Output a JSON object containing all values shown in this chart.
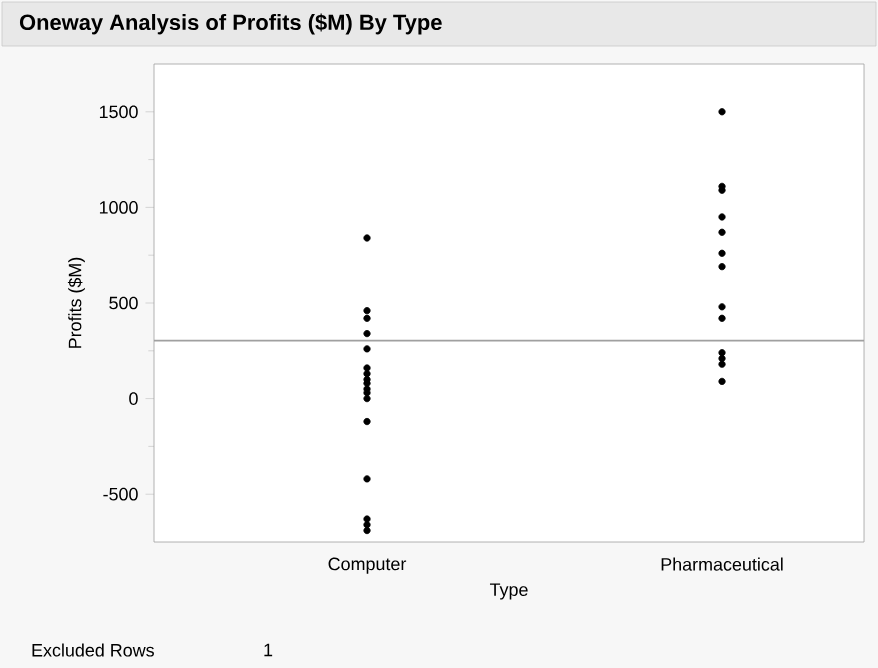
{
  "chart_data": {
    "type": "scatter",
    "title": "Oneway Analysis of Profits ($M) By Type",
    "xlabel": "Type",
    "ylabel": "Profits ($M)",
    "categories": [
      "Computer",
      "Pharmaceutical"
    ],
    "series": [
      {
        "color": "#000000",
        "x": [
          "Computer",
          "Computer",
          "Computer",
          "Computer",
          "Computer",
          "Computer",
          "Computer",
          "Computer",
          "Computer",
          "Computer",
          "Computer",
          "Computer",
          "Computer",
          "Computer",
          "Computer",
          "Computer",
          "Computer"
        ],
        "values": [
          840,
          460,
          420,
          340,
          260,
          160,
          130,
          100,
          80,
          50,
          30,
          0,
          -120,
          -420,
          -630,
          -660,
          -690
        ]
      },
      {
        "color": "#000000",
        "x": [
          "Pharmaceutical",
          "Pharmaceutical",
          "Pharmaceutical",
          "Pharmaceutical",
          "Pharmaceutical",
          "Pharmaceutical",
          "Pharmaceutical",
          "Pharmaceutical",
          "Pharmaceutical",
          "Pharmaceutical",
          "Pharmaceutical",
          "Pharmaceutical",
          "Pharmaceutical"
        ],
        "values": [
          1500,
          1110,
          1090,
          950,
          870,
          760,
          690,
          480,
          420,
          240,
          210,
          180,
          90
        ]
      }
    ],
    "ylim": [
      -750,
      1750
    ],
    "yticks": [
      -500,
      0,
      500,
      1000,
      1500
    ],
    "marker": "circle",
    "grid": false,
    "ref_lines": [
      {
        "axis": "y",
        "value": 303,
        "color": "#a0a0a0"
      }
    ],
    "annotations": [
      "Excluded Rows",
      "1"
    ]
  }
}
